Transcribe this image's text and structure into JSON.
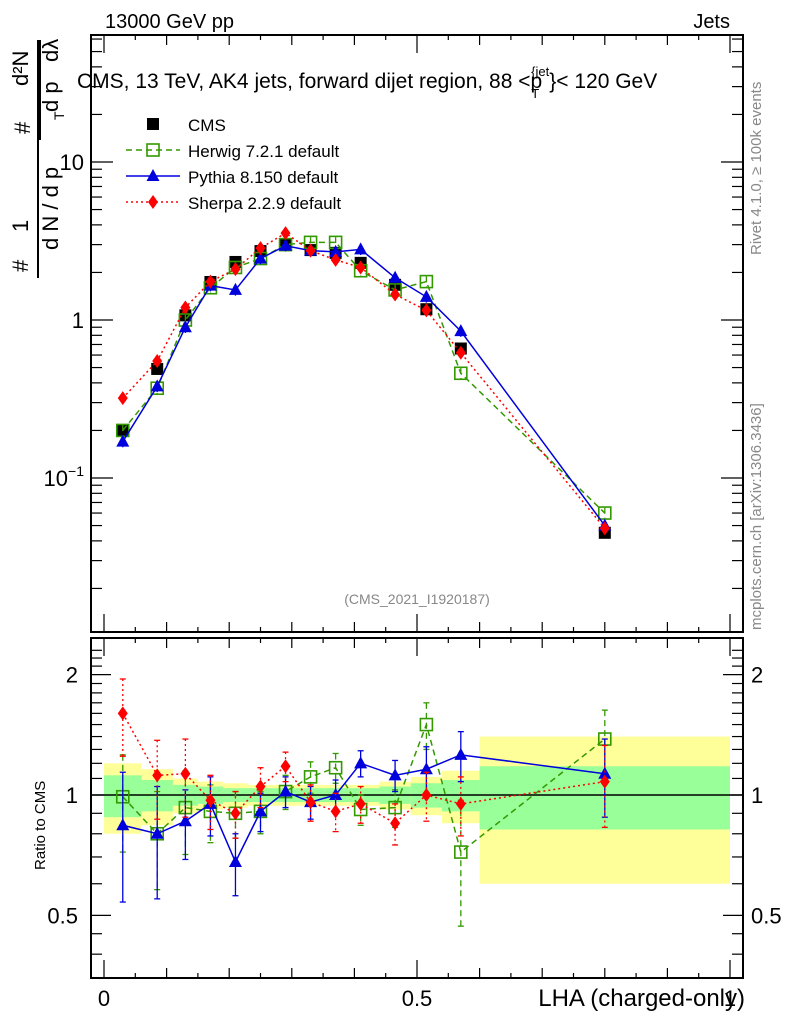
{
  "header": {
    "left": "13000 GeV pp",
    "right": "Jets"
  },
  "side_labels": {
    "rivet": "Rivet 4.1.0, ≥ 100k events",
    "mcplots": "mcplots.cern.ch [arXiv:1306.3436]"
  },
  "analysis_id": "(CMS_2021_I1920187)",
  "chart_data": [
    {
      "type": "line",
      "title": "CMS, 13 TeV, AK4 jets, forward dijet region, 88 < p_T^{jet} < 120 GeV",
      "title_parts": {
        "main": "CMS, 13 TeV, AK4 jets, forward dijet region, 88 <p",
        "sup": "{jet",
        "sub": "T",
        "tail": "}< 120 GeV"
      },
      "ylabel": "1/(dN/dp_T) d²N/(dp_T dλ)",
      "ylabel_parts": {
        "hash": "#",
        "one": "1",
        "den": "d N / d p",
        "sub": "T",
        "num": "d²N",
        "den2": "d p",
        "lam": "dλ"
      },
      "xlabel": "",
      "yscale": "log",
      "xlim": [
        0,
        1
      ],
      "ylim": [
        0.016,
        80
      ],
      "yticks": [
        {
          "v": 0.1,
          "label": "10⁻¹"
        },
        {
          "v": 1,
          "label": "1"
        },
        {
          "v": 10,
          "label": "10"
        }
      ],
      "legend_position": "top-left",
      "x": [
        0.03,
        0.085,
        0.13,
        0.17,
        0.21,
        0.25,
        0.29,
        0.33,
        0.37,
        0.41,
        0.465,
        0.515,
        0.57,
        0.8
      ],
      "series": [
        {
          "name": "CMS",
          "color": "#000000",
          "marker": "square-filled",
          "line": "none",
          "values": [
            0.2,
            0.49,
            1.07,
            1.74,
            2.33,
            2.73,
            3.0,
            2.77,
            2.66,
            2.3,
            1.67,
            1.17,
            0.66,
            0.045
          ]
        },
        {
          "name": "Herwig 7.2.1 default",
          "color": "#339900",
          "marker": "square-open",
          "line": "dashed",
          "values": [
            0.2,
            0.37,
            1.0,
            1.6,
            2.15,
            2.45,
            3.0,
            3.1,
            3.1,
            2.05,
            1.55,
            1.75,
            0.46,
            0.06
          ]
        },
        {
          "name": "Pythia 8.150 default",
          "color": "#0000dd",
          "marker": "triangle",
          "line": "solid",
          "values": [
            0.17,
            0.38,
            0.9,
            1.65,
            1.55,
            2.45,
            2.95,
            2.75,
            2.7,
            2.8,
            1.85,
            1.4,
            0.85,
            0.05
          ]
        },
        {
          "name": "Sherpa 2.2.9 default",
          "color": "#ff0000",
          "marker": "diamond",
          "line": "dotted",
          "values": [
            0.32,
            0.55,
            1.2,
            1.75,
            2.1,
            2.85,
            3.55,
            2.75,
            2.4,
            2.15,
            1.45,
            1.15,
            0.62,
            0.048
          ]
        }
      ]
    },
    {
      "type": "line",
      "title": "",
      "xlabel": "LHA (charged-only)",
      "ylabel": "Ratio to CMS",
      "yscale": "log",
      "xlim": [
        0,
        1
      ],
      "ylim": [
        0.4,
        2.4
      ],
      "xticks": [
        {
          "v": 0,
          "label": "0"
        },
        {
          "v": 0.5,
          "label": "0.5"
        },
        {
          "v": 1,
          "label": "1"
        }
      ],
      "yticks": [
        {
          "v": 0.5,
          "label": "0.5"
        },
        {
          "v": 1,
          "label": "1"
        },
        {
          "v": 2,
          "label": "2"
        }
      ],
      "x": [
        0.03,
        0.085,
        0.13,
        0.17,
        0.21,
        0.25,
        0.29,
        0.33,
        0.37,
        0.41,
        0.465,
        0.515,
        0.57,
        0.8
      ],
      "bin_edges": [
        0,
        0.06,
        0.11,
        0.15,
        0.19,
        0.23,
        0.27,
        0.31,
        0.35,
        0.39,
        0.44,
        0.49,
        0.54,
        0.6,
        1.0
      ],
      "bands": {
        "stat_green": [
          0.12,
          0.09,
          0.06,
          0.05,
          0.04,
          0.04,
          0.04,
          0.04,
          0.04,
          0.04,
          0.05,
          0.07,
          0.09,
          0.18
        ],
        "total_yellow": [
          0.2,
          0.16,
          0.1,
          0.08,
          0.07,
          0.06,
          0.06,
          0.06,
          0.06,
          0.06,
          0.08,
          0.11,
          0.15,
          0.4
        ]
      },
      "series": [
        {
          "name": "Herwig 7.2.1 default",
          "color": "#339900",
          "marker": "square-open",
          "line": "dashed",
          "values": [
            0.99,
            0.8,
            0.93,
            0.91,
            0.9,
            0.91,
            1.02,
            1.11,
            1.17,
            0.92,
            0.93,
            1.5,
            0.72,
            1.38
          ],
          "err": [
            0.27,
            0.22,
            0.22,
            0.15,
            0.12,
            0.11,
            0.1,
            0.1,
            0.1,
            0.08,
            0.1,
            0.2,
            0.25,
            0.25
          ]
        },
        {
          "name": "Pythia 8.150 default",
          "color": "#0000dd",
          "marker": "triangle",
          "line": "solid",
          "values": [
            0.84,
            0.8,
            0.86,
            0.95,
            0.68,
            0.91,
            1.02,
            0.96,
            1.0,
            1.2,
            1.12,
            1.16,
            1.26,
            1.13
          ],
          "err": [
            0.3,
            0.25,
            0.17,
            0.16,
            0.12,
            0.1,
            0.09,
            0.09,
            0.09,
            0.09,
            0.1,
            0.16,
            0.18,
            0.25
          ]
        },
        {
          "name": "Sherpa 2.2.9 default",
          "color": "#ff0000",
          "marker": "diamond",
          "line": "dotted",
          "values": [
            1.6,
            1.12,
            1.13,
            0.97,
            0.9,
            1.05,
            1.18,
            0.96,
            0.91,
            0.95,
            0.85,
            1.0,
            0.95,
            1.08
          ],
          "err": [
            0.35,
            0.25,
            0.25,
            0.15,
            0.12,
            0.12,
            0.1,
            0.1,
            0.1,
            0.1,
            0.1,
            0.14,
            0.16,
            0.25
          ]
        }
      ]
    }
  ]
}
